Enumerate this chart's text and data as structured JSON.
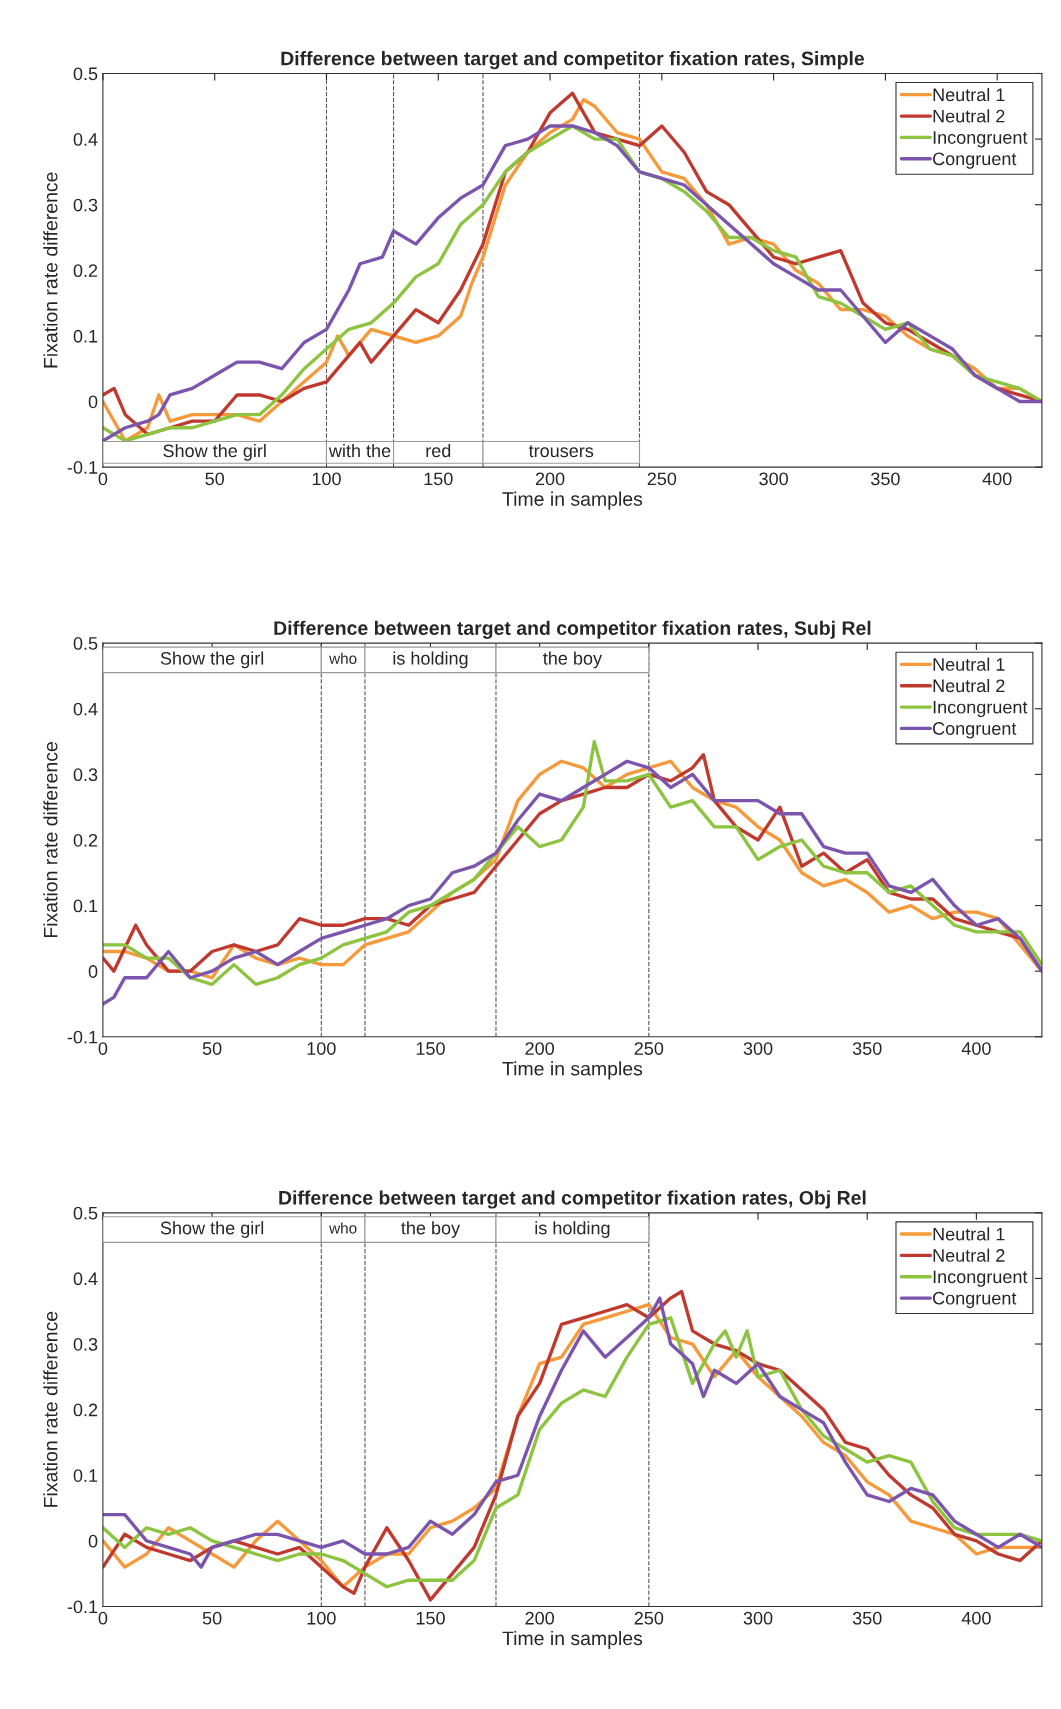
{
  "chart_data": [
    {
      "type": "line",
      "title": "Difference between target and competitor fixation rates, Simple",
      "xlabel": "Time in samples",
      "ylabel": "Fixation rate difference",
      "xlim": [
        0,
        420
      ],
      "ylim": [
        -0.1,
        0.5
      ],
      "xticks": [
        0,
        50,
        100,
        150,
        200,
        250,
        300,
        350,
        400
      ],
      "yticks": [
        -0.1,
        0,
        0.1,
        0.2,
        0.3,
        0.4,
        0.5
      ],
      "grid": false,
      "legend": "top right",
      "line_style": "solid",
      "marker": "none",
      "ref_lines": [
        {
          "axis": "x",
          "value": 100,
          "line_style": "dashed"
        },
        {
          "axis": "x",
          "value": 130,
          "line_style": "dashed"
        },
        {
          "axis": "x",
          "value": 170,
          "line_style": "dashed"
        },
        {
          "axis": "x",
          "value": 240,
          "line_style": "dashed"
        }
      ],
      "bands": [
        {
          "axis": "x",
          "from": 0,
          "to": 100,
          "label": "Show the girl"
        },
        {
          "axis": "x",
          "from": 100,
          "to": 130,
          "label": "with the"
        },
        {
          "axis": "x",
          "from": 130,
          "to": 170,
          "label": "red"
        },
        {
          "axis": "x",
          "from": 170,
          "to": 240,
          "label": "trousers"
        }
      ],
      "series": [
        {
          "name": "Neutral 1",
          "color": "#f5993a",
          "x": [
            0,
            5,
            10,
            20,
            25,
            30,
            40,
            50,
            60,
            70,
            80,
            90,
            100,
            105,
            110,
            120,
            130,
            140,
            150,
            160,
            165,
            170,
            180,
            190,
            200,
            210,
            215,
            220,
            230,
            240,
            250,
            260,
            270,
            280,
            290,
            300,
            310,
            320,
            330,
            340,
            350,
            360,
            370,
            380,
            390,
            400,
            410,
            420
          ],
          "values": [
            0,
            -0.03,
            -0.06,
            -0.04,
            0.01,
            -0.03,
            -0.02,
            -0.02,
            -0.02,
            -0.03,
            0,
            0.03,
            0.06,
            0.1,
            0.07,
            0.11,
            0.1,
            0.09,
            0.1,
            0.13,
            0.18,
            0.22,
            0.33,
            0.38,
            0.41,
            0.43,
            0.46,
            0.45,
            0.41,
            0.4,
            0.35,
            0.34,
            0.3,
            0.24,
            0.25,
            0.24,
            0.2,
            0.18,
            0.14,
            0.14,
            0.13,
            0.1,
            0.08,
            0.07,
            0.05,
            0.02,
            0.02,
            0
          ]
        },
        {
          "name": "Neutral 2",
          "color": "#c0392f",
          "x": [
            0,
            5,
            10,
            20,
            30,
            40,
            50,
            60,
            70,
            80,
            90,
            100,
            110,
            115,
            120,
            130,
            140,
            150,
            160,
            170,
            180,
            190,
            200,
            210,
            220,
            230,
            240,
            250,
            260,
            270,
            280,
            290,
            300,
            310,
            320,
            330,
            340,
            350,
            360,
            370,
            380,
            390,
            400,
            410,
            420
          ],
          "values": [
            0.01,
            0.02,
            -0.02,
            -0.05,
            -0.04,
            -0.03,
            -0.03,
            0.01,
            0.01,
            0,
            0.02,
            0.03,
            0.07,
            0.09,
            0.06,
            0.1,
            0.14,
            0.12,
            0.17,
            0.24,
            0.35,
            0.38,
            0.44,
            0.47,
            0.41,
            0.4,
            0.39,
            0.42,
            0.38,
            0.32,
            0.3,
            0.26,
            0.22,
            0.21,
            0.22,
            0.23,
            0.15,
            0.12,
            0.11,
            0.09,
            0.07,
            0.04,
            0.02,
            0.01,
            0
          ]
        },
        {
          "name": "Incongruent",
          "color": "#8cc43f",
          "x": [
            0,
            10,
            20,
            30,
            40,
            50,
            60,
            70,
            80,
            90,
            100,
            110,
            120,
            130,
            140,
            150,
            160,
            170,
            180,
            190,
            200,
            210,
            220,
            230,
            240,
            250,
            260,
            270,
            280,
            290,
            300,
            310,
            320,
            330,
            340,
            350,
            360,
            370,
            380,
            390,
            400,
            410,
            420
          ],
          "values": [
            -0.04,
            -0.06,
            -0.05,
            -0.04,
            -0.04,
            -0.03,
            -0.02,
            -0.02,
            0.01,
            0.05,
            0.08,
            0.11,
            0.12,
            0.15,
            0.19,
            0.21,
            0.27,
            0.3,
            0.35,
            0.38,
            0.4,
            0.42,
            0.4,
            0.4,
            0.35,
            0.34,
            0.32,
            0.29,
            0.25,
            0.25,
            0.23,
            0.22,
            0.16,
            0.15,
            0.13,
            0.11,
            0.12,
            0.08,
            0.07,
            0.04,
            0.03,
            0.02,
            0
          ]
        },
        {
          "name": "Congruent",
          "color": "#7b55ad",
          "x": [
            0,
            10,
            20,
            25,
            30,
            40,
            50,
            60,
            70,
            80,
            90,
            100,
            110,
            115,
            125,
            130,
            140,
            150,
            160,
            170,
            180,
            190,
            200,
            210,
            220,
            230,
            240,
            250,
            260,
            270,
            280,
            290,
            300,
            310,
            320,
            330,
            340,
            350,
            360,
            370,
            380,
            390,
            400,
            410,
            420
          ],
          "values": [
            -0.06,
            -0.04,
            -0.03,
            -0.02,
            0.01,
            0.02,
            0.04,
            0.06,
            0.06,
            0.05,
            0.09,
            0.11,
            0.17,
            0.21,
            0.22,
            0.26,
            0.24,
            0.28,
            0.31,
            0.33,
            0.39,
            0.4,
            0.42,
            0.42,
            0.41,
            0.39,
            0.35,
            0.34,
            0.33,
            0.3,
            0.27,
            0.24,
            0.21,
            0.19,
            0.17,
            0.17,
            0.13,
            0.09,
            0.12,
            0.1,
            0.08,
            0.04,
            0.02,
            0,
            0
          ]
        }
      ]
    },
    {
      "type": "line",
      "title": "Difference between target and competitor fixation rates, Subj Rel",
      "xlabel": "Time in samples",
      "ylabel": "Fixation rate difference",
      "xlim": [
        0,
        430
      ],
      "ylim": [
        -0.1,
        0.5
      ],
      "xticks": [
        0,
        50,
        100,
        150,
        200,
        250,
        300,
        350,
        400
      ],
      "yticks": [
        -0.1,
        0,
        0.1,
        0.2,
        0.3,
        0.4,
        0.5
      ],
      "grid": false,
      "legend": "top right",
      "line_style": "solid",
      "marker": "none",
      "ref_lines": [
        {
          "axis": "x",
          "value": 100,
          "line_style": "dashed"
        },
        {
          "axis": "x",
          "value": 120,
          "line_style": "dashed"
        },
        {
          "axis": "x",
          "value": 180,
          "line_style": "dashed"
        },
        {
          "axis": "x",
          "value": 250,
          "line_style": "dashed"
        }
      ],
      "bands": [
        {
          "axis": "x",
          "from": 0,
          "to": 100,
          "label": "Show the girl"
        },
        {
          "axis": "x",
          "from": 100,
          "to": 120,
          "label": "who"
        },
        {
          "axis": "x",
          "from": 120,
          "to": 180,
          "label": "is holding"
        },
        {
          "axis": "x",
          "from": 180,
          "to": 250,
          "label": "the boy"
        }
      ],
      "series": [
        {
          "name": "Neutral 1",
          "color": "#f5993a",
          "x": [
            0,
            10,
            20,
            30,
            40,
            50,
            60,
            70,
            80,
            90,
            100,
            110,
            120,
            130,
            140,
            150,
            160,
            170,
            180,
            190,
            200,
            210,
            220,
            230,
            240,
            250,
            260,
            270,
            280,
            290,
            300,
            310,
            320,
            330,
            340,
            350,
            360,
            370,
            380,
            390,
            400,
            410,
            420,
            430
          ],
          "values": [
            0.03,
            0.03,
            0.02,
            0,
            0,
            -0.01,
            0.04,
            0.02,
            0.01,
            0.02,
            0.01,
            0.01,
            0.04,
            0.05,
            0.06,
            0.09,
            0.12,
            0.14,
            0.17,
            0.26,
            0.3,
            0.32,
            0.31,
            0.28,
            0.3,
            0.31,
            0.32,
            0.28,
            0.26,
            0.25,
            0.22,
            0.2,
            0.15,
            0.13,
            0.14,
            0.12,
            0.09,
            0.1,
            0.08,
            0.09,
            0.09,
            0.08,
            0.04,
            0
          ]
        },
        {
          "name": "Neutral 2",
          "color": "#c0392f",
          "x": [
            0,
            5,
            15,
            20,
            30,
            40,
            50,
            60,
            70,
            80,
            90,
            100,
            110,
            120,
            130,
            140,
            150,
            160,
            170,
            180,
            190,
            200,
            210,
            220,
            230,
            240,
            250,
            260,
            270,
            275,
            280,
            290,
            300,
            310,
            320,
            330,
            340,
            350,
            360,
            370,
            380,
            390,
            400,
            410,
            420,
            430
          ],
          "values": [
            0.02,
            0,
            0.07,
            0.04,
            0,
            0,
            0.03,
            0.04,
            0.03,
            0.04,
            0.08,
            0.07,
            0.07,
            0.08,
            0.08,
            0.07,
            0.1,
            0.11,
            0.12,
            0.16,
            0.2,
            0.24,
            0.26,
            0.27,
            0.28,
            0.28,
            0.3,
            0.29,
            0.31,
            0.33,
            0.26,
            0.22,
            0.2,
            0.25,
            0.16,
            0.18,
            0.15,
            0.17,
            0.12,
            0.11,
            0.11,
            0.08,
            0.07,
            0.06,
            0.05,
            0
          ]
        },
        {
          "name": "Incongruent",
          "color": "#8cc43f",
          "x": [
            0,
            10,
            20,
            30,
            40,
            50,
            60,
            70,
            80,
            90,
            100,
            110,
            120,
            130,
            140,
            150,
            160,
            170,
            180,
            190,
            200,
            210,
            220,
            225,
            230,
            240,
            250,
            260,
            270,
            280,
            290,
            300,
            310,
            320,
            330,
            340,
            350,
            360,
            370,
            380,
            390,
            400,
            410,
            420,
            430
          ],
          "values": [
            0.04,
            0.04,
            0.02,
            0.02,
            -0.01,
            -0.02,
            0.01,
            -0.02,
            -0.01,
            0.01,
            0.02,
            0.04,
            0.05,
            0.06,
            0.09,
            0.1,
            0.12,
            0.14,
            0.18,
            0.22,
            0.19,
            0.2,
            0.25,
            0.35,
            0.29,
            0.29,
            0.3,
            0.25,
            0.26,
            0.22,
            0.22,
            0.17,
            0.19,
            0.2,
            0.16,
            0.15,
            0.15,
            0.12,
            0.13,
            0.1,
            0.07,
            0.06,
            0.06,
            0.06,
            0.01
          ]
        },
        {
          "name": "Congruent",
          "color": "#7b55ad",
          "x": [
            0,
            5,
            10,
            20,
            30,
            40,
            50,
            60,
            70,
            80,
            90,
            100,
            110,
            120,
            130,
            140,
            150,
            160,
            170,
            180,
            190,
            200,
            210,
            220,
            230,
            240,
            250,
            260,
            270,
            280,
            290,
            300,
            310,
            320,
            330,
            340,
            350,
            360,
            370,
            380,
            390,
            400,
            410,
            420,
            430
          ],
          "values": [
            -0.05,
            -0.04,
            -0.01,
            -0.01,
            0.03,
            -0.01,
            0,
            0.02,
            0.03,
            0.01,
            0.03,
            0.05,
            0.06,
            0.07,
            0.08,
            0.1,
            0.11,
            0.15,
            0.16,
            0.18,
            0.23,
            0.27,
            0.26,
            0.28,
            0.3,
            0.32,
            0.31,
            0.28,
            0.3,
            0.26,
            0.26,
            0.26,
            0.24,
            0.24,
            0.19,
            0.18,
            0.18,
            0.13,
            0.12,
            0.14,
            0.1,
            0.07,
            0.08,
            0.05,
            0
          ]
        }
      ]
    },
    {
      "type": "line",
      "title": "Difference between target and competitor fixation rates, Obj Rel",
      "xlabel": "Time in samples",
      "ylabel": "Fixation rate difference",
      "xlim": [
        0,
        430
      ],
      "ylim": [
        -0.1,
        0.5
      ],
      "xticks": [
        0,
        50,
        100,
        150,
        200,
        250,
        300,
        350,
        400
      ],
      "yticks": [
        -0.1,
        0,
        0.1,
        0.2,
        0.3,
        0.4,
        0.5
      ],
      "grid": false,
      "legend": "top right",
      "line_style": "solid",
      "marker": "none",
      "ref_lines": [
        {
          "axis": "x",
          "value": 100,
          "line_style": "dashed"
        },
        {
          "axis": "x",
          "value": 120,
          "line_style": "dashed"
        },
        {
          "axis": "x",
          "value": 180,
          "line_style": "dashed"
        },
        {
          "axis": "x",
          "value": 250,
          "line_style": "dashed"
        }
      ],
      "bands": [
        {
          "axis": "x",
          "from": 0,
          "to": 100,
          "label": "Show the girl"
        },
        {
          "axis": "x",
          "from": 100,
          "to": 120,
          "label": "who"
        },
        {
          "axis": "x",
          "from": 120,
          "to": 180,
          "label": "the boy"
        },
        {
          "axis": "x",
          "from": 180,
          "to": 250,
          "label": "is holding"
        }
      ],
      "series": [
        {
          "name": "Neutral 1",
          "color": "#f5993a",
          "x": [
            0,
            10,
            20,
            30,
            40,
            50,
            60,
            70,
            80,
            90,
            100,
            110,
            120,
            130,
            140,
            150,
            160,
            170,
            180,
            190,
            200,
            210,
            220,
            230,
            240,
            250,
            260,
            270,
            280,
            290,
            300,
            310,
            320,
            330,
            340,
            350,
            360,
            370,
            380,
            390,
            400,
            410,
            420,
            430
          ],
          "values": [
            0,
            -0.04,
            -0.02,
            0.02,
            0,
            -0.02,
            -0.04,
            0,
            0.03,
            0,
            -0.03,
            -0.07,
            -0.04,
            -0.02,
            -0.02,
            0.02,
            0.03,
            0.05,
            0.08,
            0.19,
            0.27,
            0.28,
            0.33,
            0.34,
            0.35,
            0.36,
            0.31,
            0.3,
            0.25,
            0.29,
            0.25,
            0.22,
            0.19,
            0.15,
            0.13,
            0.09,
            0.07,
            0.03,
            0.02,
            0.01,
            -0.02,
            -0.01,
            -0.01,
            -0.01
          ]
        },
        {
          "name": "Neutral 2",
          "color": "#c0392f",
          "x": [
            0,
            10,
            20,
            30,
            40,
            50,
            60,
            70,
            80,
            90,
            100,
            110,
            115,
            120,
            130,
            140,
            150,
            160,
            170,
            180,
            190,
            200,
            210,
            220,
            230,
            240,
            250,
            260,
            265,
            270,
            280,
            290,
            300,
            310,
            320,
            330,
            340,
            350,
            360,
            370,
            380,
            390,
            400,
            410,
            420,
            430
          ],
          "values": [
            -0.04,
            0.01,
            -0.01,
            -0.02,
            -0.03,
            -0.01,
            0,
            -0.01,
            -0.02,
            -0.01,
            -0.04,
            -0.07,
            -0.08,
            -0.04,
            0.02,
            -0.03,
            -0.09,
            -0.05,
            -0.01,
            0.07,
            0.19,
            0.24,
            0.33,
            0.34,
            0.35,
            0.36,
            0.34,
            0.37,
            0.38,
            0.32,
            0.3,
            0.29,
            0.27,
            0.26,
            0.23,
            0.2,
            0.15,
            0.14,
            0.1,
            0.07,
            0.05,
            0.01,
            0,
            -0.02,
            -0.03,
            0
          ]
        },
        {
          "name": "Incongruent",
          "color": "#8cc43f",
          "x": [
            0,
            10,
            20,
            30,
            40,
            50,
            60,
            70,
            80,
            90,
            100,
            110,
            120,
            130,
            140,
            150,
            160,
            170,
            180,
            190,
            200,
            210,
            220,
            230,
            240,
            250,
            260,
            270,
            280,
            285,
            290,
            295,
            300,
            310,
            320,
            330,
            340,
            350,
            360,
            370,
            380,
            390,
            400,
            410,
            420,
            430
          ],
          "values": [
            0.02,
            -0.01,
            0.02,
            0.01,
            0.02,
            0,
            -0.01,
            -0.02,
            -0.03,
            -0.02,
            -0.02,
            -0.03,
            -0.05,
            -0.07,
            -0.06,
            -0.06,
            -0.06,
            -0.03,
            0.05,
            0.07,
            0.17,
            0.21,
            0.23,
            0.22,
            0.28,
            0.33,
            0.34,
            0.24,
            0.3,
            0.32,
            0.28,
            0.32,
            0.25,
            0.26,
            0.2,
            0.16,
            0.14,
            0.12,
            0.13,
            0.12,
            0.06,
            0.02,
            0.01,
            0.01,
            0.01,
            0
          ]
        },
        {
          "name": "Congruent",
          "color": "#7b55ad",
          "x": [
            0,
            10,
            20,
            30,
            40,
            45,
            50,
            60,
            70,
            80,
            90,
            100,
            110,
            120,
            130,
            140,
            150,
            160,
            170,
            180,
            190,
            200,
            210,
            220,
            230,
            240,
            250,
            255,
            260,
            270,
            275,
            280,
            290,
            300,
            310,
            320,
            330,
            340,
            350,
            360,
            370,
            380,
            390,
            400,
            410,
            420,
            430
          ],
          "values": [
            0.04,
            0.04,
            0,
            -0.01,
            -0.02,
            -0.04,
            -0.01,
            0,
            0.01,
            0.01,
            0,
            -0.01,
            0,
            -0.02,
            -0.02,
            -0.01,
            0.03,
            0.01,
            0.04,
            0.09,
            0.1,
            0.19,
            0.26,
            0.32,
            0.28,
            0.31,
            0.34,
            0.37,
            0.3,
            0.27,
            0.22,
            0.26,
            0.24,
            0.27,
            0.22,
            0.2,
            0.18,
            0.12,
            0.07,
            0.06,
            0.08,
            0.07,
            0.03,
            0.01,
            -0.01,
            0.01,
            -0.01
          ]
        }
      ]
    }
  ]
}
